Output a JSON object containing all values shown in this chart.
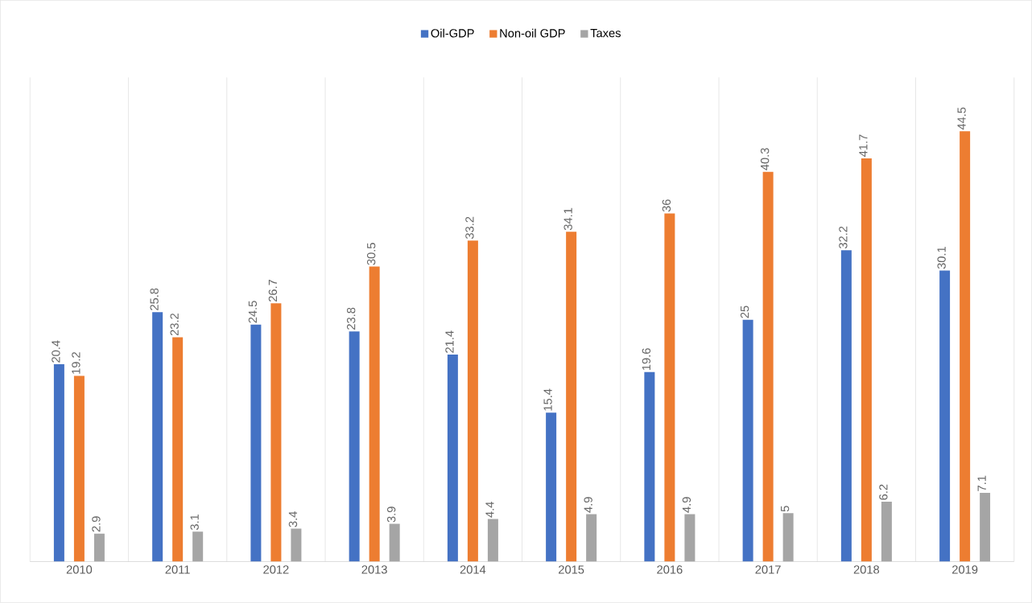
{
  "chart_data": {
    "type": "bar",
    "categories": [
      "2010",
      "2011",
      "2012",
      "2013",
      "2014",
      "2015",
      "2016",
      "2017",
      "2018",
      "2019"
    ],
    "series": [
      {
        "name": "Oil-GDP",
        "color": "#4472c4",
        "values": [
          20.4,
          25.8,
          24.5,
          23.8,
          21.4,
          15.4,
          19.6,
          25,
          32.2,
          30.1
        ]
      },
      {
        "name": "Non-oil GDP",
        "color": "#ed7d31",
        "values": [
          19.2,
          23.2,
          26.7,
          30.5,
          33.2,
          34.1,
          36,
          40.3,
          41.7,
          44.5
        ]
      },
      {
        "name": "Taxes",
        "color": "#a5a5a5",
        "values": [
          2.9,
          3.1,
          3.4,
          3.9,
          4.4,
          4.9,
          4.9,
          5,
          6.2,
          7.1
        ]
      }
    ],
    "data_labels": true,
    "grid": "x",
    "legend": "top"
  }
}
